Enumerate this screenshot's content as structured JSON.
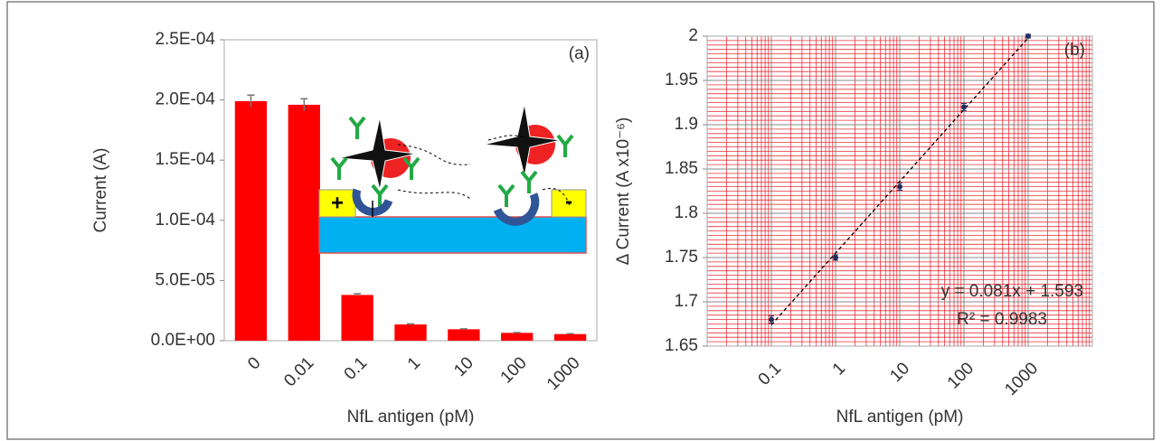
{
  "chart_data": [
    {
      "type": "bar",
      "annotation": "(a)",
      "x_label": "NfL antigen (pM)",
      "y_label": "Current (A)",
      "categories": [
        "0",
        "0.01",
        "0.1",
        "1",
        "10",
        "100",
        "1000"
      ],
      "values": [
        0.000199,
        0.000196,
        3.8e-05,
        1.35e-05,
        9.5e-06,
        6.5e-06,
        5.5e-06
      ],
      "errors": [
        5e-06,
        5e-06,
        1e-06,
        5e-07,
        4e-07,
        3e-07,
        3e-07
      ],
      "color": "#ff0000",
      "error_color": "#777777",
      "ylim": [
        0,
        0.00025
      ],
      "yticks": [
        {
          "value": 0,
          "label": "0.0E+00"
        },
        {
          "value": 5e-05,
          "label": "5.0E-05"
        },
        {
          "value": 0.0001,
          "label": "1.0E-04"
        },
        {
          "value": 0.00015,
          "label": "1.5E-04"
        },
        {
          "value": 0.0002,
          "label": "2.0E-04"
        },
        {
          "value": 0.00025,
          "label": "2.5E-04"
        }
      ],
      "inset_labels": [
        "+",
        "-"
      ]
    },
    {
      "type": "scatter",
      "annotation": "(b)",
      "x_label": "NfL antigen (pM)",
      "y_label": "Δ Current (A x10⁻⁶)",
      "x": [
        0.1,
        1,
        10,
        100,
        1000
      ],
      "values": [
        1.68,
        1.75,
        1.83,
        1.92,
        2.0
      ],
      "errors": [
        0.004,
        0.003,
        0.004,
        0.004,
        0.002
      ],
      "color": "#1f2f5f",
      "x_log": true,
      "xlim": [
        0.01,
        10000
      ],
      "xticks": [
        0.1,
        1,
        10,
        100,
        1000
      ],
      "ylim": [
        1.65,
        2
      ],
      "yticks": [
        1.65,
        1.7,
        1.75,
        1.8,
        1.85,
        1.9,
        1.95,
        2
      ],
      "grid": true,
      "grid_color": "#888888",
      "minor_grid_color": "#e8303a",
      "trendline": {
        "slope": 0.081,
        "intercept": 1.593,
        "label": "y = 0.081x + 1.593",
        "r2_label": "R² = 0.9983"
      }
    }
  ]
}
